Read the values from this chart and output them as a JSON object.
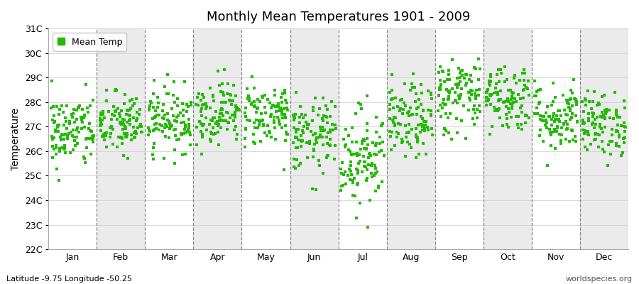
{
  "title": "Monthly Mean Temperatures 1901 - 2009",
  "ylabel": "Temperature",
  "subtitle_left": "Latitude -9.75 Longitude -50.25",
  "subtitle_right": "worldspecies.org",
  "legend_label": "Mean Temp",
  "dot_color": "#22BB00",
  "background_color": "#FFFFFF",
  "plot_bg_color": "#FFFFFF",
  "band_color_even": "#EBEBEB",
  "band_color_odd": "#FFFFFF",
  "ylim": [
    22,
    31
  ],
  "yticks": [
    22,
    23,
    24,
    25,
    26,
    27,
    28,
    29,
    30,
    31
  ],
  "ytick_labels": [
    "22C",
    "23C",
    "24C",
    "25C",
    "26C",
    "27C",
    "28C",
    "29C",
    "30C",
    "31C"
  ],
  "months": [
    "Jan",
    "Feb",
    "Mar",
    "Apr",
    "May",
    "Jun",
    "Jul",
    "Aug",
    "Sep",
    "Oct",
    "Nov",
    "Dec"
  ],
  "month_means": [
    26.8,
    27.1,
    27.3,
    27.6,
    27.5,
    26.6,
    25.8,
    27.2,
    28.3,
    28.2,
    27.4,
    27.1
  ],
  "month_stds": [
    0.75,
    0.65,
    0.65,
    0.65,
    0.65,
    0.75,
    1.0,
    0.75,
    0.8,
    0.7,
    0.7,
    0.65
  ],
  "n_years": 109,
  "seed": 42
}
